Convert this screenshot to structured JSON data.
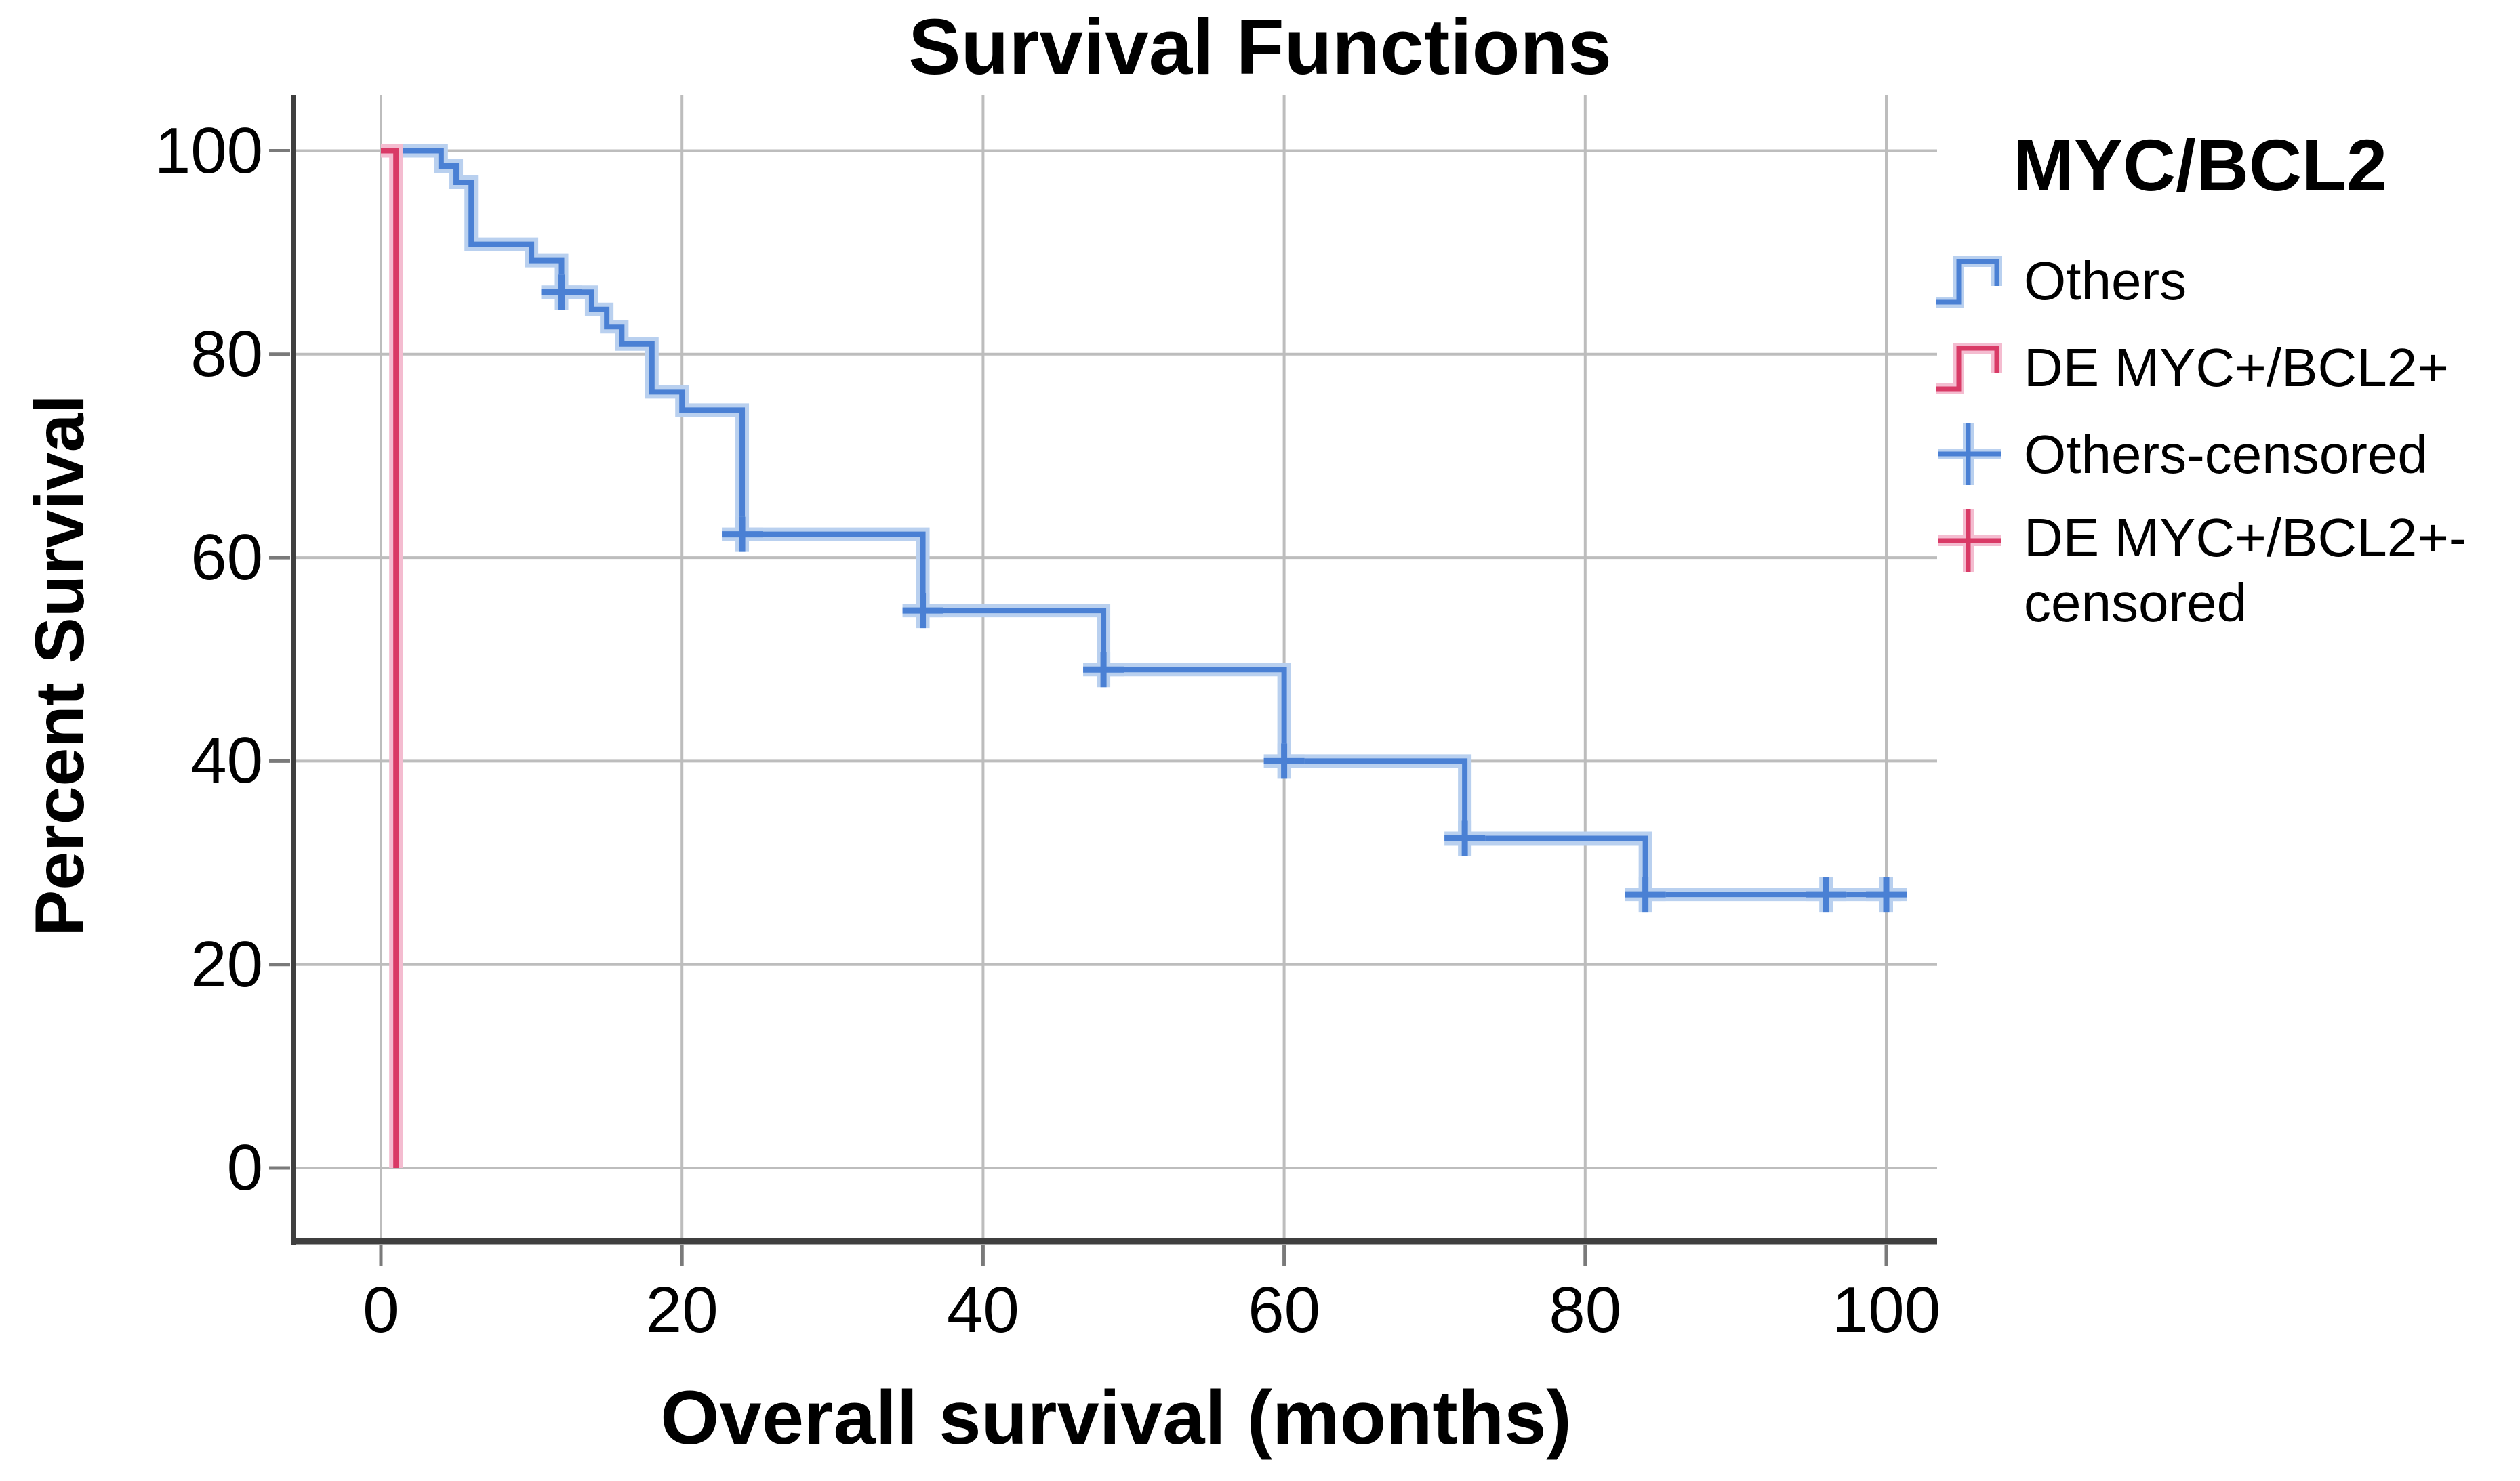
{
  "chart_data": {
    "type": "line",
    "subtype": "kaplan-meier-step",
    "title": "Survival Functions",
    "xlabel": "Overall survival (months)",
    "ylabel": "Percent Survival",
    "x_ticks": [
      0,
      20,
      40,
      60,
      80,
      100
    ],
    "y_ticks": [
      100,
      80,
      60,
      40,
      20,
      0
    ],
    "xlim": [
      -6,
      103
    ],
    "ylim": [
      0,
      100
    ],
    "grid": true,
    "grid_color": "#bdbdbd",
    "axis_color": "#3f3f3f",
    "tick_color": "#7a7a7a",
    "legend_position": "right",
    "legend": {
      "title": "MYC/BCL2",
      "entries": [
        {
          "label": "Others",
          "marker": "step-line",
          "color": "#4a80d4"
        },
        {
          "label": "DE MYC+/BCL2+",
          "marker": "step-line",
          "color": "#d93a66"
        },
        {
          "label": "Others-censored",
          "marker": "plus",
          "color": "#4a80d4"
        },
        {
          "label": "DE MYC+/BCL2+-censored",
          "line1": "DE MYC+/BCL2+-",
          "line2": "censored",
          "marker": "plus",
          "color": "#d93a66"
        }
      ]
    },
    "series": [
      {
        "name": "Others",
        "color": "#4a80d4",
        "halo_color": "#b9d0ef",
        "steps": [
          [
            0,
            100
          ],
          [
            4,
            98.5
          ],
          [
            5,
            96.9
          ],
          [
            6,
            90.8
          ],
          [
            10,
            89.2
          ],
          [
            12,
            86.1
          ],
          [
            14,
            84.4
          ],
          [
            15,
            82.7
          ],
          [
            16,
            81.0
          ],
          [
            18,
            76.3
          ],
          [
            20,
            74.5
          ],
          [
            24,
            62.3
          ],
          [
            36,
            54.8
          ],
          [
            48,
            49.0
          ],
          [
            60,
            40.0
          ],
          [
            72,
            32.4
          ],
          [
            84,
            26.9
          ]
        ],
        "end_time": 101,
        "censored": [
          [
            12,
            86.1
          ],
          [
            24,
            62.3
          ],
          [
            36,
            54.8
          ],
          [
            48,
            49.0
          ],
          [
            60,
            40.0
          ],
          [
            72,
            32.4
          ],
          [
            84,
            26.9
          ],
          [
            96,
            26.9
          ],
          [
            100,
            26.9
          ]
        ]
      },
      {
        "name": "DE MYC+/BCL2+",
        "color": "#d93a66",
        "halo_color": "#f4bcd0",
        "steps": [
          [
            0,
            100
          ],
          [
            1,
            0
          ]
        ],
        "end_time": 1,
        "censored": []
      }
    ]
  }
}
